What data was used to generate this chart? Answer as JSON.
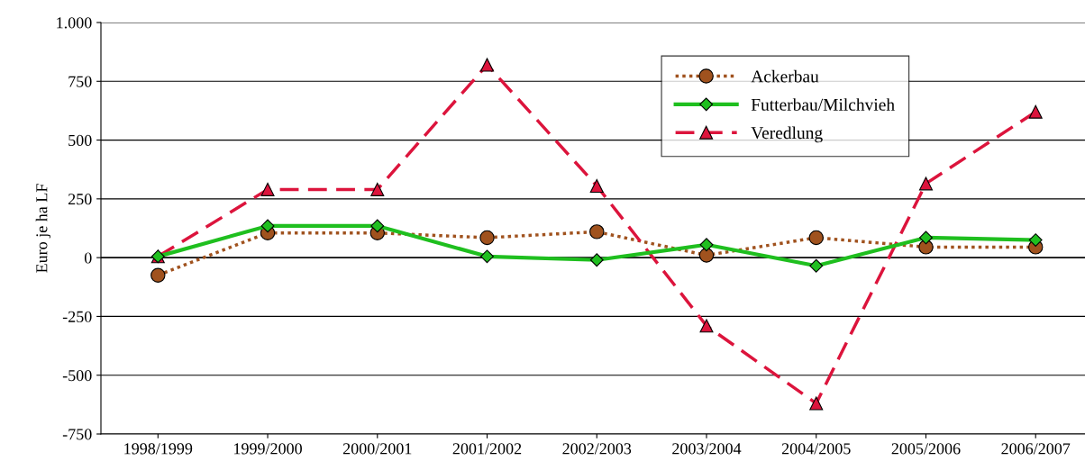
{
  "chart_data": {
    "type": "line",
    "ylabel": "Euro je ha LF",
    "categories": [
      "1998/1999",
      "1999/2000",
      "2000/2001",
      "2001/2002",
      "2002/2003",
      "2003/2004",
      "2004/2005",
      "2005/2006",
      "2006/2007"
    ],
    "series": [
      {
        "name": "Ackerbau",
        "color": "#a0521e",
        "marker": "circle",
        "line_style": "dotted",
        "values": [
          -75,
          105,
          105,
          85,
          110,
          10,
          85,
          45,
          45
        ]
      },
      {
        "name": "Futterbau/Milchvieh",
        "color": "#1fbf1f",
        "marker": "diamond",
        "line_style": "solid",
        "values": [
          5,
          135,
          135,
          5,
          -10,
          55,
          -35,
          85,
          75
        ]
      },
      {
        "name": "Veredlung",
        "color": "#dc143c",
        "marker": "triangle",
        "line_style": "dashed",
        "values": [
          5,
          290,
          290,
          820,
          305,
          -290,
          -620,
          315,
          620
        ]
      }
    ],
    "ylim": [
      -750,
      1000
    ],
    "yticks": [
      -750,
      -500,
      -250,
      0,
      250,
      500,
      750,
      {
        "value": 1000,
        "label": "1.000"
      }
    ],
    "grid": "y",
    "legend": "top right"
  }
}
